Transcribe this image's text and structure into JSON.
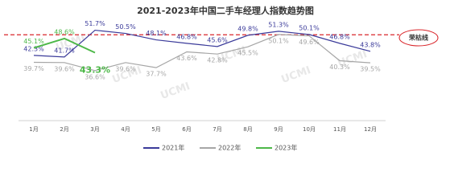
{
  "chart_data": {
    "type": "line",
    "title": "2021-2023年中国二手车经理人指数趋势图",
    "categories": [
      "1月",
      "2月",
      "3月",
      "4月",
      "5月",
      "6月",
      "7月",
      "8月",
      "9月",
      "10月",
      "11月",
      "12月"
    ],
    "series": [
      {
        "name": "2021年",
        "color": "#3b3b9a",
        "values": [
          42.3,
          41.7,
          51.7,
          50.5,
          48.1,
          46.8,
          45.6,
          49.8,
          51.3,
          50.1,
          46.8,
          43.8
        ],
        "value_labels": [
          "42.3%",
          "41.7%",
          "51.7%",
          "50.5%",
          "48.1%",
          "46.8%",
          "45.6%",
          "49.8%",
          "51.3%",
          "50.1%",
          "46.8%",
          "43.8%"
        ]
      },
      {
        "name": "2022年",
        "color": "#a6a6a6",
        "values": [
          39.7,
          39.6,
          36.6,
          39.6,
          37.7,
          43.6,
          42.8,
          45.5,
          50.1,
          49.6,
          40.3,
          39.5
        ],
        "value_labels": [
          "39.7%",
          "39.6%",
          "36.6%",
          "39.6%",
          "37.7%",
          "43.6%",
          "42.8%",
          "45.5%",
          "50.1%",
          "49.6%",
          "40.3%",
          "39.5%"
        ]
      },
      {
        "name": "2023年",
        "color": "#4db848",
        "values": [
          45.1,
          48.6,
          43.3,
          null,
          null,
          null,
          null,
          null,
          null,
          null,
          null,
          null
        ],
        "value_labels": [
          "45.1%",
          "48.6%",
          "43.3%",
          null,
          null,
          null,
          null,
          null,
          null,
          null,
          null,
          null
        ]
      }
    ],
    "ylim": [
      20,
      63
    ],
    "reference_line": {
      "value": 50,
      "label": "荣枯线",
      "color": "#d9262b"
    },
    "watermark": "UCMI"
  }
}
